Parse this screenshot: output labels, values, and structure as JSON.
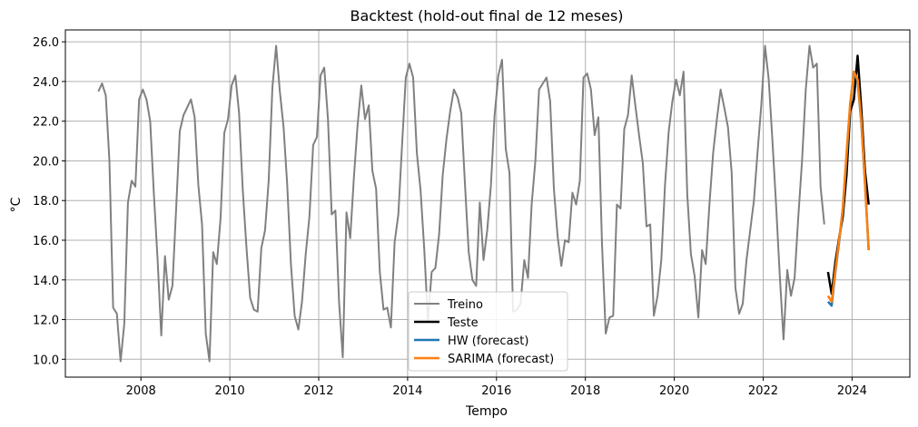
{
  "chart_data": {
    "type": "line",
    "title": "Backtest (hold-out final de 12 meses)",
    "xlabel": "Tempo",
    "ylabel": "°C",
    "xlim": [
      2006.3,
      2025.3
    ],
    "ylim": [
      9.1,
      26.6
    ],
    "grid": true,
    "legend_position": "lower-center",
    "x_ticks": [
      2008,
      2010,
      2012,
      2014,
      2016,
      2018,
      2020,
      2022,
      2024
    ],
    "x_tick_labels": [
      "2008",
      "2010",
      "2012",
      "2014",
      "2016",
      "2018",
      "2020",
      "2022",
      "2024"
    ],
    "y_ticks": [
      10,
      12,
      14,
      16,
      18,
      20,
      22,
      24,
      26
    ],
    "y_tick_labels": [
      "10.0",
      "12.0",
      "14.0",
      "16.0",
      "18.0",
      "20.0",
      "22.0",
      "24.0",
      "26.0"
    ],
    "series": [
      {
        "name": "Treino",
        "color": "#808080",
        "start": 2007.0417,
        "step": 0.083333,
        "values": [
          23.5,
          23.9,
          23.3,
          20.0,
          12.6,
          12.3,
          9.9,
          11.8,
          17.9,
          19.0,
          18.7,
          23.1,
          23.6,
          23.1,
          22.0,
          18.3,
          15.0,
          11.2,
          15.2,
          13.0,
          13.7,
          17.6,
          21.5,
          22.3,
          22.7,
          23.1,
          22.2,
          18.8,
          16.8,
          11.3,
          9.9,
          15.4,
          14.8,
          17.1,
          21.4,
          22.1,
          23.8,
          24.3,
          22.4,
          18.5,
          15.6,
          13.1,
          12.5,
          12.4,
          15.6,
          16.5,
          19.0,
          23.7,
          25.8,
          23.5,
          21.7,
          18.8,
          14.8,
          12.2,
          11.5,
          12.9,
          15.3,
          17.2,
          20.8,
          21.2,
          24.3,
          24.7,
          22.1,
          17.3,
          17.5,
          12.9,
          10.1,
          17.4,
          16.1,
          19.2,
          21.8,
          23.8,
          22.1,
          22.8,
          19.5,
          18.6,
          14.4,
          12.5,
          12.6,
          11.6,
          15.9,
          17.3,
          20.8,
          24.2,
          24.9,
          24.2,
          20.4,
          18.5,
          15.5,
          11.9,
          14.4,
          14.6,
          16.3,
          19.3,
          21.1,
          22.5,
          23.6,
          23.2,
          22.4,
          18.8,
          15.4,
          14.0,
          13.7,
          17.9,
          15.0,
          16.5,
          18.8,
          22.3,
          24.3,
          25.1,
          20.6,
          19.4,
          12.4,
          12.5,
          12.8,
          15.0,
          14.1,
          17.8,
          20.0,
          23.6,
          23.9,
          24.2,
          23.0,
          18.6,
          16.2,
          14.7,
          16.0,
          15.9,
          18.4,
          17.8,
          19.0,
          24.2,
          24.4,
          23.6,
          21.3,
          22.2,
          15.8,
          11.3,
          12.1,
          12.2,
          17.8,
          17.6,
          21.6,
          22.3,
          24.3,
          22.8,
          21.3,
          19.9,
          16.7,
          16.8,
          12.2,
          13.2,
          15.0,
          18.8,
          21.5,
          23.0,
          24.1,
          23.3,
          24.5,
          18.3,
          15.3,
          14.2,
          12.1,
          15.5,
          14.8,
          17.8,
          20.4,
          22.1,
          23.6,
          22.7,
          21.7,
          19.4,
          13.6,
          12.3,
          12.8,
          15.0,
          16.5,
          18.0,
          20.5,
          22.8,
          25.8,
          24.1,
          21.0,
          17.8,
          14.2,
          11.0,
          14.5,
          13.2,
          14.1,
          17.2,
          20.0,
          23.6,
          25.8,
          24.7,
          24.9,
          18.7,
          16.8
        ]
      },
      {
        "name": "Teste",
        "color": "#000000",
        "x": [
          2023.4583,
          2023.5417,
          2023.625,
          2023.7083,
          2023.7917,
          2023.875,
          2023.9583,
          2024.0417,
          2024.125,
          2024.2083,
          2024.2917,
          2024.375
        ],
        "values": [
          14.4,
          13.3,
          14.9,
          16.1,
          17.2,
          19.3,
          22.5,
          23.1,
          25.3,
          22.6,
          19.5,
          17.8
        ]
      },
      {
        "name": "HW (forecast)",
        "color": "#1f77b4",
        "x": [
          2023.4583,
          2023.5417,
          2023.625,
          2023.7083,
          2023.7917,
          2023.875,
          2023.9583,
          2024.0417,
          2024.125,
          2024.2083,
          2024.2917,
          2024.375
        ],
        "values": [
          12.9,
          12.7,
          14.4,
          15.9,
          17.6,
          20.2,
          22.8,
          24.5,
          24.0,
          21.9,
          18.9,
          15.5
        ]
      },
      {
        "name": "SARIMA (forecast)",
        "color": "#ff7f0e",
        "x": [
          2023.4583,
          2023.5417,
          2023.625,
          2023.7083,
          2023.7917,
          2023.875,
          2023.9583,
          2024.0417,
          2024.125,
          2024.2083,
          2024.2917,
          2024.375
        ],
        "values": [
          13.2,
          12.9,
          14.5,
          16.0,
          17.6,
          20.4,
          22.9,
          24.5,
          24.1,
          22.0,
          18.9,
          15.5
        ]
      }
    ]
  }
}
